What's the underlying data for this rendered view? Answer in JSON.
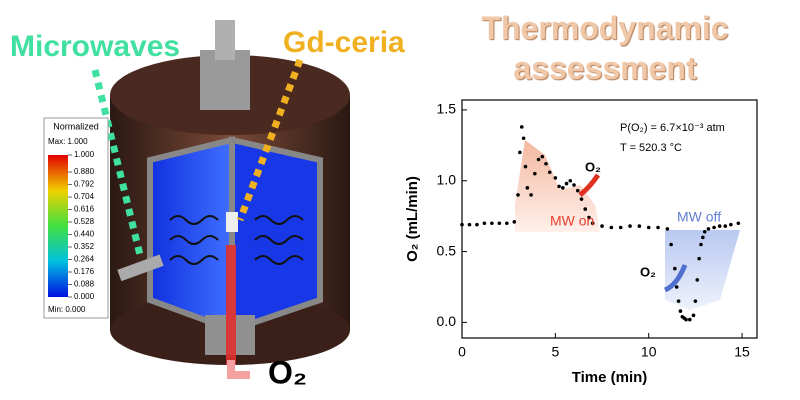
{
  "illustration": {
    "microwaves": "Microwaves",
    "material": "Gd-ceria",
    "product": "O₂",
    "colorbar": {
      "title": "Normalized",
      "max_label": "Max: 1.000",
      "min_label": "Min: 0.000",
      "ticks": [
        {
          "value": 1,
          "label": "1.000"
        },
        {
          "value": 0.88,
          "label": "0.880"
        },
        {
          "value": 0.792,
          "label": "0.792"
        },
        {
          "value": 0.704,
          "label": "0.704"
        },
        {
          "value": 0.616,
          "label": "0.616"
        },
        {
          "value": 0.528,
          "label": "0.528"
        },
        {
          "value": 0.44,
          "label": "0.440"
        },
        {
          "value": 0.352,
          "label": "0.352"
        },
        {
          "value": 0.264,
          "label": "0.264"
        },
        {
          "value": 0.176,
          "label": "0.176"
        },
        {
          "value": 0.088,
          "label": "0.088"
        },
        {
          "value": 0,
          "label": "0.000"
        }
      ]
    }
  },
  "chart_data": {
    "type": "scatter",
    "title": "Thermodynamic assessment",
    "x_label": "Time (min)",
    "y_label": "O₂ (mL/min)",
    "color": "#000000",
    "xlim": [
      0,
      15.8
    ],
    "xticks": [
      0,
      5,
      10,
      15
    ],
    "ylim": [
      -0.11,
      1.57
    ],
    "yticks": [
      {
        "value": 0,
        "label": "0.0"
      },
      0.5,
      {
        "value": 1,
        "label": "1.0"
      },
      1.5
    ],
    "x": [
      0,
      0.4,
      0.8,
      1.2,
      1.6,
      2.0,
      2.4,
      2.8,
      3.0,
      3.1,
      3.2,
      3.3,
      3.4,
      3.5,
      3.7,
      3.9,
      4.1,
      4.3,
      4.5,
      4.7,
      5.0,
      5.2,
      5.4,
      5.6,
      5.8,
      6.0,
      6.2,
      6.4,
      6.6,
      6.8,
      7.0,
      7.5,
      8.0,
      8.5,
      9.0,
      9.5,
      10.0,
      10.5,
      11.0,
      11.2,
      11.4,
      11.5,
      11.6,
      11.7,
      11.8,
      11.9,
      12.0,
      12.2,
      12.4,
      12.5,
      12.6,
      12.7,
      12.8,
      12.9,
      13.0,
      13.2,
      13.5,
      13.8,
      14.1,
      14.4,
      14.8
    ],
    "values": [
      0.69,
      0.69,
      0.69,
      0.7,
      0.7,
      0.7,
      0.7,
      0.71,
      0.9,
      1.2,
      1.38,
      1.3,
      1.1,
      0.95,
      0.9,
      1.05,
      1.15,
      1.17,
      1.12,
      1.06,
      1.02,
      0.96,
      0.95,
      0.98,
      1.0,
      0.97,
      0.93,
      0.87,
      0.8,
      0.74,
      0.7,
      0.68,
      0.67,
      0.67,
      0.68,
      0.68,
      0.67,
      0.67,
      0.66,
      0.55,
      0.38,
      0.25,
      0.15,
      0.08,
      0.04,
      0.03,
      0.02,
      0.02,
      0.05,
      0.15,
      0.3,
      0.45,
      0.55,
      0.6,
      0.64,
      0.66,
      0.67,
      0.68,
      0.68,
      0.69,
      0.7
    ],
    "annotations": {
      "pressure": "P(O₂) = 6.7×10⁻³ atm",
      "temperature": "T = 520.3 °C",
      "mw_on": "MW on",
      "mw_off": "MW off",
      "o2_release": "O₂",
      "o2_uptake": "O₂"
    }
  }
}
